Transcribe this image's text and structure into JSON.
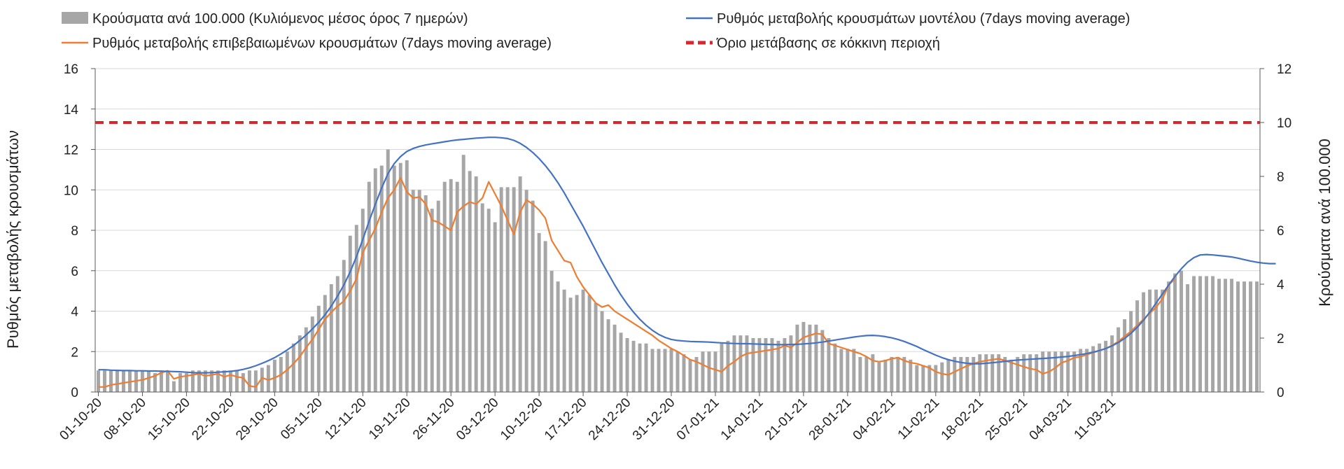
{
  "chart_data": {
    "type": "bar",
    "title": "",
    "ylabel_left": "Ρυθμός μεταβολής κρουσμάτων",
    "ylabel_right": "Κρούσματα ανά 100.000",
    "ylim_left": [
      0,
      16
    ],
    "ylim_right": [
      0,
      12
    ],
    "yticks_left": [
      "0",
      "2",
      "4",
      "6",
      "8",
      "10",
      "12",
      "14",
      "16"
    ],
    "yticks_right": [
      "0",
      "2",
      "4",
      "6",
      "8",
      "10",
      "12"
    ],
    "x_tick_labels": [
      "01-10-20",
      "08-10-20",
      "15-10-20",
      "22-10-20",
      "29-10-20",
      "05-11-20",
      "12-11-20",
      "19-11-20",
      "26-11-20",
      "03-12-20",
      "10-12-20",
      "17-12-20",
      "24-12-20",
      "31-12-20",
      "07-01-21",
      "14-01-21",
      "21-01-21",
      "28-01-21",
      "04-02-21",
      "11-02-21",
      "18-02-21",
      "25-02-21",
      "04-03-21",
      "11-03-21"
    ],
    "legend_position": "top",
    "grid": "horizontal",
    "legend": {
      "bars": "Κρούσματα ανά 100.000 (Κυλιόμενος μέσος όρος 7 ημερών)",
      "model": "Ρυθμός μεταβολής κρουσμάτων μοντέλου (7days moving average)",
      "confirmed": "Ρυθμός μεταβολής επιβεβαιωμένων κρουσμάτων (7days moving average)",
      "threshold": "Όριο μετάβασης σε κόκκινη περιοχή"
    },
    "colors": {
      "bars": "#a6a6a6",
      "model": "#4472c4",
      "confirmed": "#ed7d31",
      "threshold": "#d9262c"
    },
    "threshold_value": 10,
    "bar_values": [
      0.8,
      0.8,
      0.8,
      0.8,
      0.8,
      0.8,
      0.8,
      0.8,
      0.8,
      0.7,
      0.8,
      0.8,
      0.4,
      0.7,
      0.7,
      0.8,
      0.8,
      0.8,
      0.8,
      0.8,
      0.8,
      0.8,
      0.8,
      0.7,
      0.8,
      0.8,
      0.9,
      1.0,
      1.2,
      1.3,
      1.5,
      1.8,
      2.1,
      2.4,
      2.8,
      3.2,
      3.6,
      4.0,
      4.3,
      4.9,
      5.8,
      6.2,
      6.8,
      7.8,
      8.3,
      8.4,
      9.0,
      8.4,
      8.5,
      8.6,
      7.5,
      7.5,
      7.3,
      6.8,
      7.1,
      7.8,
      7.9,
      7.8,
      8.8,
      8.2,
      8.0,
      7.0,
      6.8,
      6.3,
      7.6,
      7.6,
      7.6,
      8.0,
      7.5,
      7.1,
      5.9,
      5.6,
      4.5,
      4.1,
      3.8,
      3.5,
      3.6,
      3.8,
      3.6,
      3.3,
      3.0,
      2.7,
      2.5,
      2.2,
      2.0,
      1.9,
      1.8,
      1.8,
      1.6,
      1.6,
      1.6,
      1.6,
      1.5,
      1.4,
      1.2,
      1.3,
      1.5,
      1.5,
      1.5,
      1.8,
      1.9,
      2.1,
      2.1,
      2.1,
      2.0,
      2.0,
      2.0,
      2.0,
      1.9,
      2.0,
      2.1,
      2.5,
      2.6,
      2.5,
      2.5,
      2.3,
      2.0,
      1.8,
      1.6,
      1.6,
      1.6,
      1.3,
      1.3,
      1.4,
      1.1,
      1.2,
      1.3,
      1.3,
      1.3,
      1.2,
      1.0,
      1.0,
      1.0,
      1.0,
      1.1,
      1.2,
      1.3,
      1.3,
      1.3,
      1.3,
      1.4,
      1.4,
      1.4,
      1.4,
      1.3,
      1.2,
      1.3,
      1.4,
      1.4,
      1.4,
      1.5,
      1.5,
      1.5,
      1.5,
      1.5,
      1.5,
      1.6,
      1.6,
      1.7,
      1.8,
      1.9,
      2.1,
      2.4,
      2.7,
      3.0,
      3.4,
      3.7,
      3.8,
      3.8,
      3.8,
      4.1,
      4.4,
      4.5,
      4.0,
      4.3,
      4.3,
      4.3,
      4.3,
      4.2,
      4.2,
      4.2,
      4.1,
      4.1,
      4.1,
      4.1
    ],
    "model_values": [
      1.1,
      1.1,
      1.08,
      1.07,
      1.06,
      1.06,
      1.05,
      1.05,
      1.04,
      1.04,
      1.03,
      1.02,
      1.01,
      1.0,
      0.98,
      0.96,
      0.95,
      0.95,
      0.96,
      0.98,
      1.0,
      1.02,
      1.06,
      1.12,
      1.2,
      1.3,
      1.42,
      1.55,
      1.7,
      1.88,
      2.08,
      2.3,
      2.55,
      2.82,
      3.12,
      3.45,
      3.82,
      4.25,
      4.75,
      5.3,
      5.95,
      6.7,
      7.55,
      8.45,
      9.3,
      10.1,
      10.8,
      11.3,
      11.65,
      11.9,
      12.05,
      12.15,
      12.22,
      12.28,
      12.33,
      12.38,
      12.43,
      12.47,
      12.5,
      12.53,
      12.56,
      12.58,
      12.6,
      12.6,
      12.58,
      12.54,
      12.45,
      12.3,
      12.1,
      11.85,
      11.55,
      11.2,
      10.8,
      10.35,
      9.85,
      9.3,
      8.75,
      8.2,
      7.6,
      7.0,
      6.4,
      5.85,
      5.3,
      4.8,
      4.35,
      3.95,
      3.6,
      3.3,
      3.05,
      2.85,
      2.7,
      2.6,
      2.55,
      2.52,
      2.5,
      2.49,
      2.48,
      2.47,
      2.45,
      2.43,
      2.41,
      2.4,
      2.39,
      2.39,
      2.38,
      2.37,
      2.36,
      2.35,
      2.34,
      2.34,
      2.35,
      2.36,
      2.38,
      2.4,
      2.43,
      2.47,
      2.52,
      2.57,
      2.62,
      2.67,
      2.72,
      2.76,
      2.79,
      2.8,
      2.78,
      2.74,
      2.68,
      2.6,
      2.5,
      2.38,
      2.25,
      2.1,
      1.96,
      1.82,
      1.7,
      1.6,
      1.52,
      1.46,
      1.42,
      1.4,
      1.4,
      1.42,
      1.45,
      1.48,
      1.52,
      1.55,
      1.58,
      1.6,
      1.62,
      1.64,
      1.66,
      1.68,
      1.7,
      1.73,
      1.76,
      1.8,
      1.85,
      1.9,
      1.97,
      2.05,
      2.15,
      2.28,
      2.45,
      2.65,
      2.9,
      3.2,
      3.55,
      3.95,
      4.4,
      4.85,
      5.3,
      5.72,
      6.1,
      6.42,
      6.65,
      6.78,
      6.8,
      6.78,
      6.75,
      6.72,
      6.68,
      6.62,
      6.55,
      6.48,
      6.42,
      6.38,
      6.35,
      6.35
    ],
    "confirmed_values": [
      0.25,
      0.25,
      0.35,
      0.4,
      0.45,
      0.5,
      0.55,
      0.6,
      0.7,
      0.8,
      0.95,
      1.05,
      0.65,
      0.75,
      0.8,
      0.85,
      0.9,
      0.8,
      0.85,
      0.9,
      0.75,
      0.85,
      0.75,
      0.7,
      0.3,
      0.25,
      0.7,
      0.6,
      0.7,
      0.85,
      1.1,
      1.4,
      1.75,
      2.2,
      2.6,
      3.1,
      3.6,
      3.95,
      4.25,
      4.5,
      5.0,
      5.6,
      6.9,
      7.5,
      8.1,
      8.9,
      9.6,
      10.0,
      10.6,
      9.9,
      9.6,
      9.65,
      9.3,
      8.5,
      8.4,
      8.2,
      8.0,
      8.9,
      9.2,
      9.4,
      9.3,
      9.6,
      10.4,
      9.8,
      9.2,
      8.5,
      7.8,
      8.9,
      9.5,
      9.3,
      9.0,
      8.6,
      7.5,
      7.0,
      6.5,
      6.4,
      5.7,
      5.2,
      4.8,
      4.4,
      4.2,
      4.3,
      4.0,
      3.8,
      3.6,
      3.4,
      3.2,
      3.0,
      2.8,
      2.55,
      2.35,
      2.15,
      2.0,
      1.8,
      1.6,
      1.5,
      1.35,
      1.2,
      1.1,
      1.0,
      1.3,
      1.5,
      1.75,
      1.9,
      1.95,
      2.0,
      2.05,
      2.1,
      2.15,
      2.3,
      2.2,
      2.45,
      2.7,
      2.8,
      2.9,
      2.85,
      2.4,
      2.3,
      2.2,
      2.1,
      2.0,
      1.9,
      1.75,
      1.55,
      1.5,
      1.55,
      1.65,
      1.7,
      1.55,
      1.45,
      1.4,
      1.3,
      1.2,
      1.0,
      0.9,
      0.85,
      1.0,
      1.15,
      1.3,
      1.4,
      1.5,
      1.55,
      1.6,
      1.65,
      1.55,
      1.45,
      1.35,
      1.25,
      1.15,
      1.1,
      0.9,
      1.0,
      1.2,
      1.45,
      1.55,
      1.7,
      1.75,
      1.85,
      1.95,
      2.05,
      2.15,
      2.3,
      2.5,
      2.75,
      3.0,
      3.3,
      3.6,
      3.9,
      4.2,
      4.6,
      5.3,
      5.6
    ]
  }
}
